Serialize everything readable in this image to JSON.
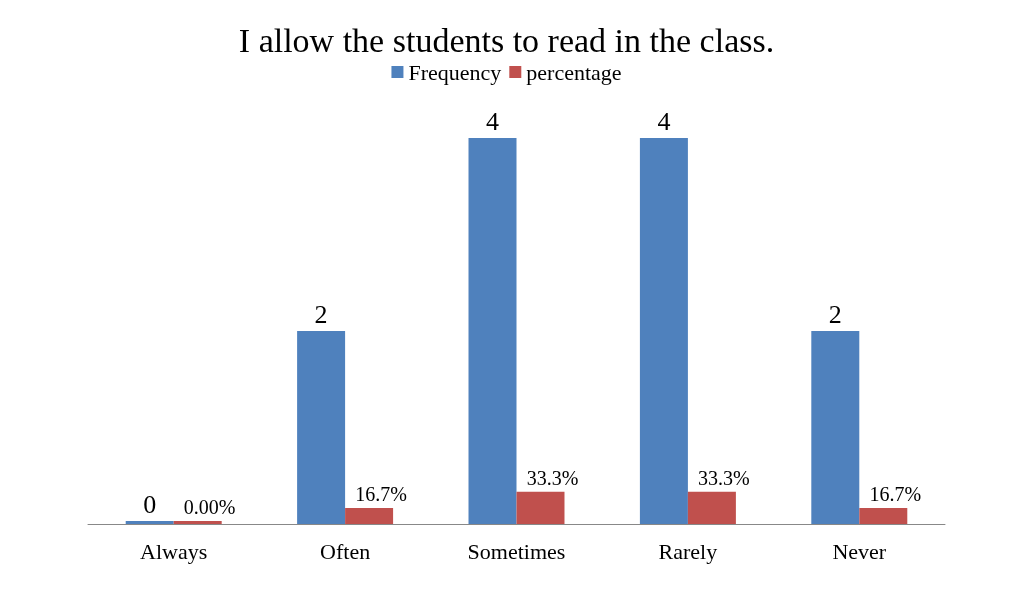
{
  "chart_data": {
    "type": "bar",
    "title": "I allow the students to read in the class.",
    "categories": [
      "Always",
      "Often",
      "Sometimes",
      "Rarely",
      "Never"
    ],
    "series": [
      {
        "name": "Frequency",
        "color": "#4f81bd",
        "values": [
          0,
          2,
          4,
          4,
          2
        ],
        "value_labels": [
          "0",
          "2",
          "4",
          "4",
          "2"
        ]
      },
      {
        "name": "percentage",
        "color": "#c0504d",
        "values": [
          0,
          0.167,
          0.333,
          0.333,
          0.167
        ],
        "value_labels": [
          "0.00%",
          "16.7%",
          "33.3%",
          "33.3%",
          "16.7%"
        ]
      }
    ],
    "grid": false,
    "legend": "top",
    "tick_labels": "x"
  }
}
